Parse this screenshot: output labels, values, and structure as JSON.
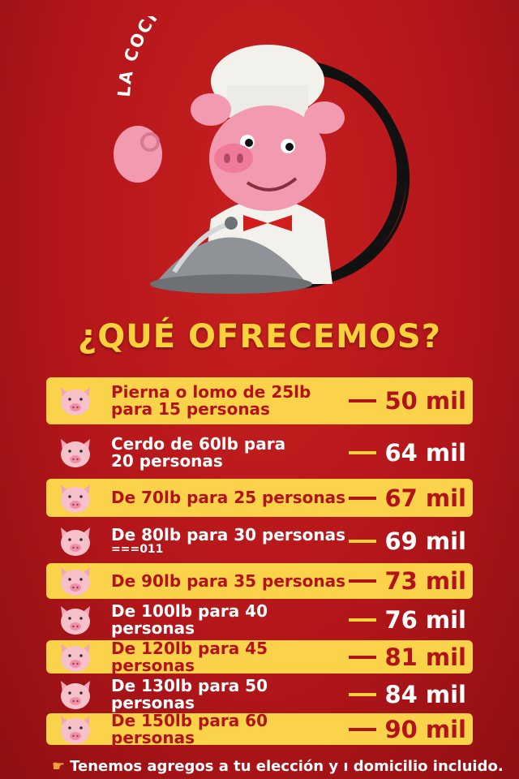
{
  "brand": {
    "name": "LA COCINA DE SERAFÍN SELLO"
  },
  "title": "¿QUÉ OFRECEMOS?",
  "colors": {
    "background": "#b3161a",
    "accent_yellow": "#fbd34a",
    "text_red": "#b3121a"
  },
  "menu": [
    {
      "line1": "Pierna o lomo de 25lb",
      "line2": "para 15 personas",
      "note": "",
      "price": "50 mil",
      "style": "yellow"
    },
    {
      "line1": "Cerdo de 60lb para",
      "line2": "20 personas",
      "note": "",
      "price": "64 mil",
      "style": "red"
    },
    {
      "line1": "De 70lb para 25 personas",
      "line2": "",
      "note": "",
      "price": "67 mil",
      "style": "yellow"
    },
    {
      "line1": "De 80lb para 30 personas",
      "line2": "",
      "note": "===011",
      "price": "69 mil",
      "style": "red"
    },
    {
      "line1": "De 90lb para 35 personas",
      "line2": "",
      "note": "",
      "price": "73 mil",
      "style": "yellow"
    },
    {
      "line1": "De 100lb para 40 personas",
      "line2": "",
      "note": "",
      "price": "76 mil",
      "style": "red"
    },
    {
      "line1": "De 120lb para 45 personas",
      "line2": "",
      "note": "",
      "price": "81 mil",
      "style": "yellow"
    },
    {
      "line1": "De 130lb para 50 personas",
      "line2": "",
      "note": "",
      "price": "84 mil",
      "style": "red"
    },
    {
      "line1": "De 150lb para 60 personas",
      "line2": "",
      "note": "",
      "price": "90 mil",
      "style": "yellow"
    }
  ],
  "footer": {
    "icon": "pointing-hand-icon",
    "text": "Tenemos agregos a tu elección y ı domicilio incluido."
  }
}
